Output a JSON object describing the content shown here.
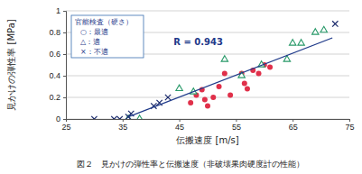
{
  "chart_data": {
    "type": "scatter",
    "title": "図２　見かけの弾性率と伝搬速度（非破壊果肉硬度計の性能）",
    "x_label": "伝搬速度 [m/s]",
    "y_label": "見かけの弾性率 [MPa]",
    "annotations": [
      "R = 0.943"
    ],
    "legend_title": "官能検査（硬さ）",
    "legend": "upper left",
    "grid": true,
    "xlim": [
      25,
      75
    ],
    "xticks": [
      25,
      35,
      45,
      55,
      65,
      75
    ],
    "ylim": [
      0,
      1
    ],
    "yticks": [
      0,
      0.2,
      0.4,
      0.6,
      0.8,
      1
    ],
    "series": [
      {
        "name": "○：最適",
        "color": "#e0304a",
        "marker": "circle",
        "x": [
          47,
          48,
          49,
          49.5,
          50,
          51,
          52,
          53,
          54,
          56,
          56.5,
          57,
          58,
          59,
          60,
          61
        ],
        "values": [
          0.15,
          0.22,
          0.27,
          0.18,
          0.12,
          0.2,
          0.3,
          0.42,
          0.22,
          0.42,
          0.33,
          0.28,
          0.45,
          0.42,
          0.5,
          0.48
        ]
      },
      {
        "name": "△：適",
        "color": "#2a9a6a",
        "marker": "triangle",
        "x": [
          36,
          38,
          45,
          47.5,
          53,
          56,
          59.5,
          64,
          65,
          66.5,
          69,
          70.5
        ],
        "values": [
          0,
          0,
          0.28,
          0.25,
          0.55,
          0.4,
          0.5,
          0.55,
          0.7,
          0.7,
          0.8,
          0.82
        ]
      },
      {
        "name": "×：不適",
        "color": "#1a2a6c",
        "marker": "x",
        "x": [
          30,
          33.5,
          34.5,
          36,
          36.5,
          40.5,
          41.5,
          43,
          72.5
        ],
        "values": [
          0,
          0,
          0,
          0.02,
          0.05,
          0.12,
          0.15,
          0.2,
          0.88
        ]
      },
      {
        "type": "line",
        "color": "#1f3a8a",
        "line_style": "solid",
        "x": [
          36,
          72
        ],
        "values": [
          0.02,
          0.75
        ]
      }
    ]
  }
}
